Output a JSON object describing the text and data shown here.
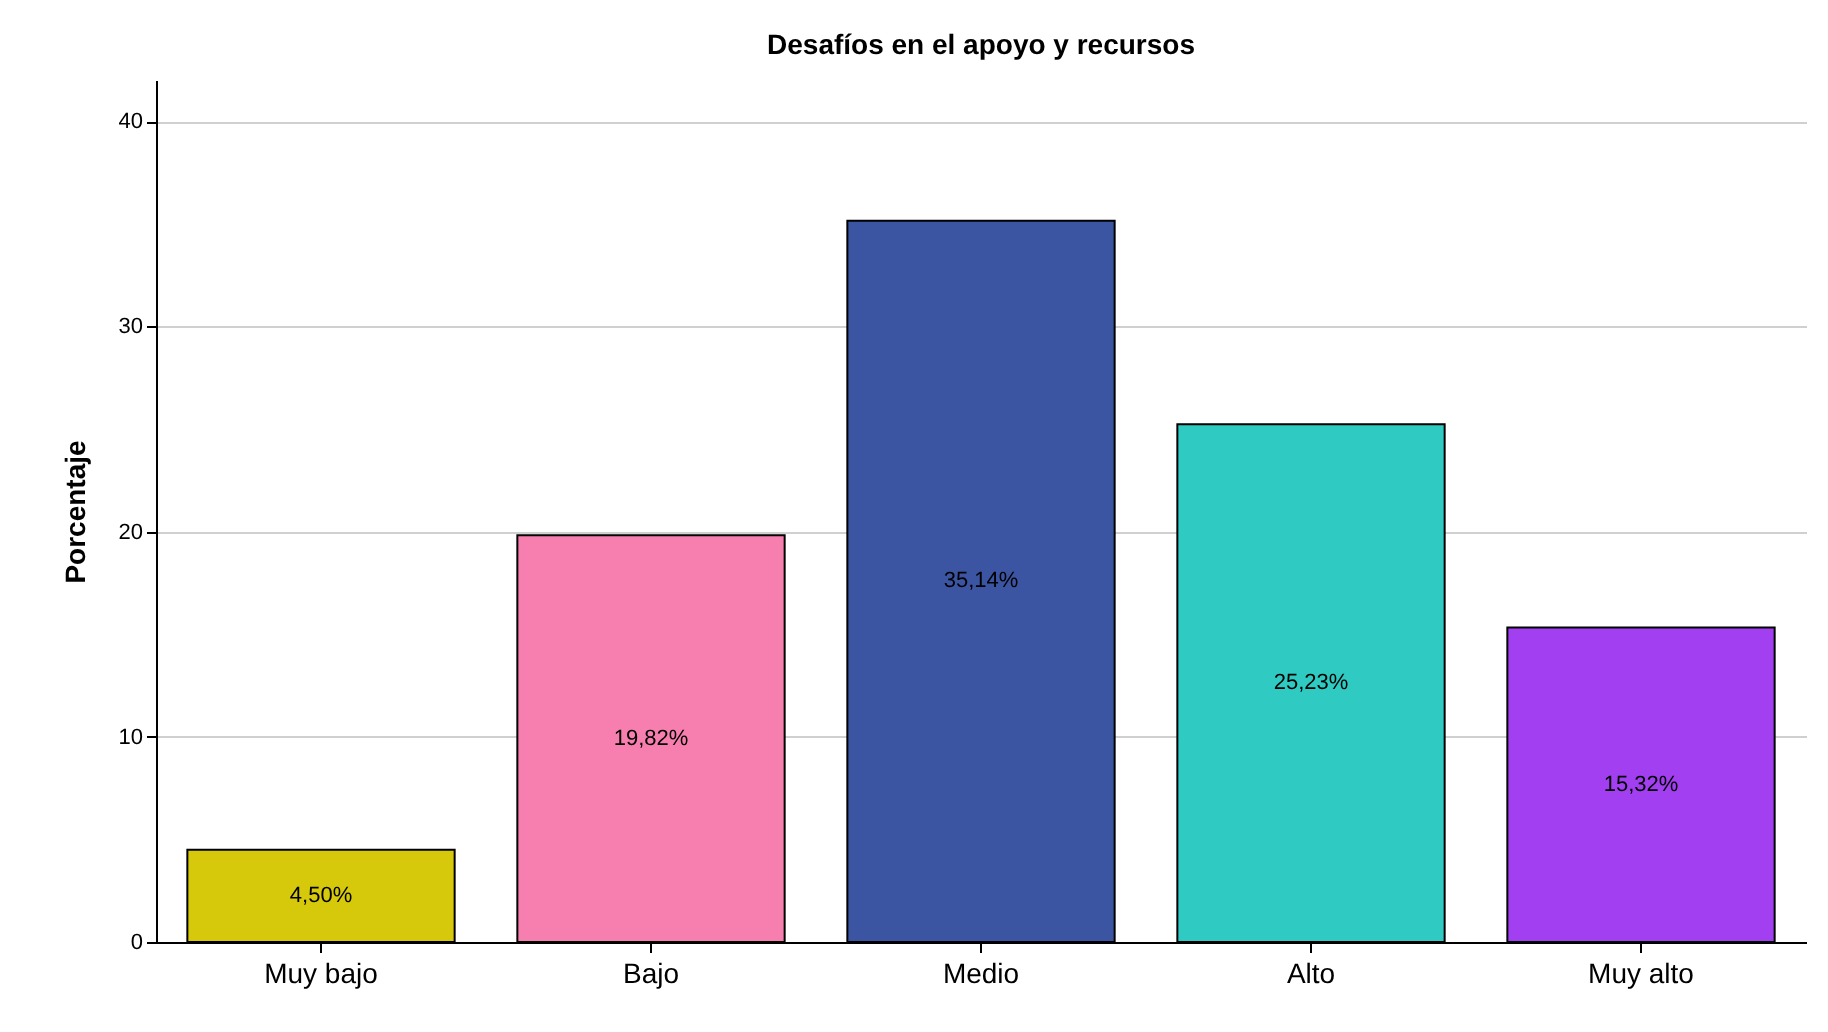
{
  "chart_data": {
    "type": "bar",
    "title": "Desafíos en el apoyo y recursos",
    "ylabel": "Porcentaje",
    "categories": [
      "Muy bajo",
      "Bajo",
      "Medio",
      "Alto",
      "Muy alto"
    ],
    "values": [
      4.5,
      19.82,
      35.14,
      25.23,
      15.32
    ],
    "colors": [
      "#d6c80a",
      "#f77faf",
      "#3b55a3",
      "#2fcbc3",
      "#a23ff0"
    ],
    "value_labels": [
      "4,50%",
      "19,82%",
      "35,14%",
      "25,23%",
      "15,32%"
    ],
    "ylim": [
      0,
      42
    ],
    "yticks": [
      0,
      10,
      20,
      30,
      40
    ],
    "grid": "y"
  }
}
